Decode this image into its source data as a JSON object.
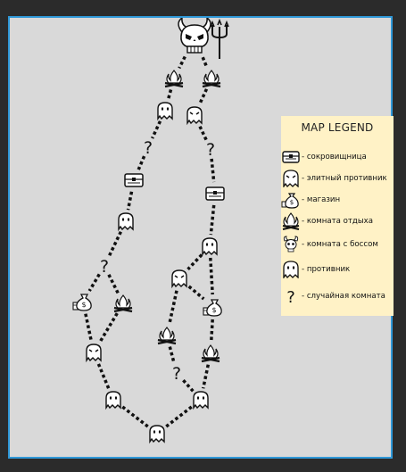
{
  "legend": {
    "title": "MAP LEGEND",
    "items": [
      {
        "icon": "treasure-chest-icon",
        "label": "- сокровищница"
      },
      {
        "icon": "elite-ghost-icon",
        "label": "- элитный противник"
      },
      {
        "icon": "money-bag-icon",
        "label": "- магазин"
      },
      {
        "icon": "campfire-icon",
        "label": "- комната отдыха"
      },
      {
        "icon": "devil-skull-icon",
        "label": "- комната с боссом"
      },
      {
        "icon": "ghost-icon",
        "label": "- противник"
      },
      {
        "icon": "question-mark-icon",
        "label": "- случайная комната"
      }
    ]
  },
  "map": {
    "question_glyph": "?",
    "nodes": [
      {
        "id": "boss",
        "type": "boss"
      },
      {
        "id": "rest-1",
        "type": "rest"
      },
      {
        "id": "rest-2",
        "type": "rest"
      },
      {
        "id": "enemy-1",
        "type": "enemy"
      },
      {
        "id": "elite-1",
        "type": "elite"
      },
      {
        "id": "random-1",
        "type": "random"
      },
      {
        "id": "random-2",
        "type": "random"
      },
      {
        "id": "treasure-1",
        "type": "treasure"
      },
      {
        "id": "treasure-2",
        "type": "treasure"
      },
      {
        "id": "enemy-2",
        "type": "enemy"
      },
      {
        "id": "enemy-3",
        "type": "enemy"
      },
      {
        "id": "random-3",
        "type": "random"
      },
      {
        "id": "elite-2",
        "type": "elite"
      },
      {
        "id": "shop-1",
        "type": "shop"
      },
      {
        "id": "rest-3",
        "type": "rest"
      },
      {
        "id": "shop-2",
        "type": "shop"
      },
      {
        "id": "elite-3",
        "type": "elite"
      },
      {
        "id": "rest-4",
        "type": "rest"
      },
      {
        "id": "rest-5",
        "type": "rest"
      },
      {
        "id": "random-4",
        "type": "random"
      },
      {
        "id": "enemy-4",
        "type": "enemy"
      },
      {
        "id": "enemy-5",
        "type": "enemy"
      },
      {
        "id": "enemy-6",
        "type": "enemy"
      }
    ],
    "edges": [
      [
        "boss",
        "rest-1"
      ],
      [
        "boss",
        "rest-2"
      ],
      [
        "rest-1",
        "enemy-1"
      ],
      [
        "rest-2",
        "elite-1"
      ],
      [
        "enemy-1",
        "random-1"
      ],
      [
        "elite-1",
        "random-2"
      ],
      [
        "random-1",
        "treasure-1"
      ],
      [
        "random-2",
        "treasure-2"
      ],
      [
        "treasure-1",
        "enemy-2"
      ],
      [
        "treasure-2",
        "enemy-3"
      ],
      [
        "enemy-2",
        "random-3"
      ],
      [
        "enemy-3",
        "elite-2"
      ],
      [
        "random-3",
        "shop-1"
      ],
      [
        "random-3",
        "rest-3"
      ],
      [
        "elite-2",
        "shop-2"
      ],
      [
        "enemy-3",
        "shop-2"
      ],
      [
        "shop-1",
        "elite-3"
      ],
      [
        "rest-3",
        "elite-3"
      ],
      [
        "elite-2",
        "rest-4"
      ],
      [
        "shop-2",
        "rest-5"
      ],
      [
        "elite-3",
        "enemy-4"
      ],
      [
        "rest-4",
        "random-4"
      ],
      [
        "random-4",
        "enemy-5"
      ],
      [
        "rest-5",
        "enemy-5"
      ],
      [
        "enemy-4",
        "enemy-6"
      ],
      [
        "enemy-5",
        "enemy-6"
      ]
    ]
  }
}
